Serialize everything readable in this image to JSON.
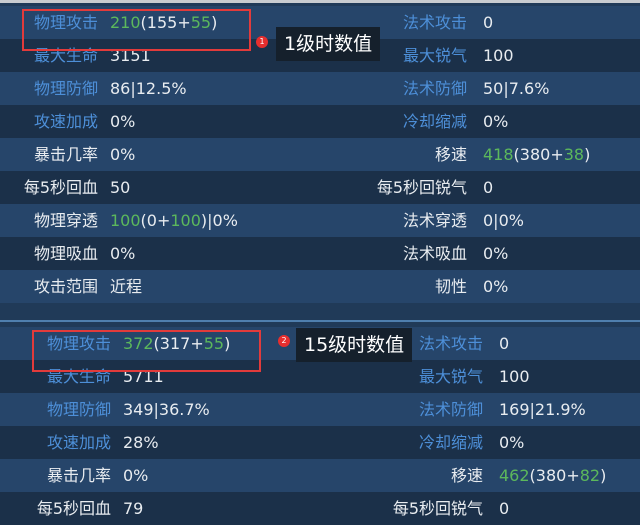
{
  "panel1": {
    "note": "1级时数值",
    "badge": "1",
    "rows": [
      {
        "l": "物理攻击",
        "lv": [
          {
            "t": "210",
            "c": "g"
          },
          {
            "t": "(155+"
          },
          {
            "t": "55",
            "c": "g"
          },
          {
            "t": ")"
          }
        ],
        "r": "法术攻击",
        "rv": [
          {
            "t": "0"
          }
        ],
        "blue": true
      },
      {
        "l": "最大生命",
        "lv": [
          {
            "t": "3151"
          }
        ],
        "r": "最大锐气",
        "rv": [
          {
            "t": "100"
          }
        ],
        "blue": true
      },
      {
        "l": "物理防御",
        "lv": [
          {
            "t": "86|12.5%"
          }
        ],
        "r": "法术防御",
        "rv": [
          {
            "t": "50|7.6%"
          }
        ],
        "blue": true
      },
      {
        "l": "攻速加成",
        "lv": [
          {
            "t": "0%"
          }
        ],
        "r": "冷却缩减",
        "rv": [
          {
            "t": "0%"
          }
        ],
        "blue": true
      },
      {
        "l": "暴击几率",
        "lv": [
          {
            "t": "0%"
          }
        ],
        "r": "移速",
        "rv": [
          {
            "t": "418",
            "c": "g"
          },
          {
            "t": "(380+"
          },
          {
            "t": "38",
            "c": "g"
          },
          {
            "t": ")"
          }
        ]
      },
      {
        "l": "每5秒回血",
        "lv": [
          {
            "t": "50"
          }
        ],
        "r": "每5秒回锐气",
        "rv": [
          {
            "t": "0"
          }
        ]
      },
      {
        "l": "物理穿透",
        "lv": [
          {
            "t": "100",
            "c": "g"
          },
          {
            "t": "(0+"
          },
          {
            "t": "100",
            "c": "g"
          },
          {
            "t": ")|0%"
          }
        ],
        "r": "法术穿透",
        "rv": [
          {
            "t": "0|0%"
          }
        ]
      },
      {
        "l": "物理吸血",
        "lv": [
          {
            "t": "0%"
          }
        ],
        "r": "法术吸血",
        "rv": [
          {
            "t": "0%"
          }
        ]
      },
      {
        "l": "攻击范围",
        "lv": [
          {
            "t": "近程"
          }
        ],
        "r": "韧性",
        "rv": [
          {
            "t": "0%"
          }
        ]
      }
    ]
  },
  "panel2": {
    "note": "15级时数值",
    "badge": "2",
    "rows": [
      {
        "l": "物理攻击",
        "lv": [
          {
            "t": "372",
            "c": "g"
          },
          {
            "t": "(317+"
          },
          {
            "t": "55",
            "c": "g"
          },
          {
            "t": ")"
          }
        ],
        "r": "法术攻击",
        "rv": [
          {
            "t": "0"
          }
        ],
        "blue": true
      },
      {
        "l": "最大生命",
        "lv": [
          {
            "t": "5711"
          }
        ],
        "r": "最大锐气",
        "rv": [
          {
            "t": "100"
          }
        ],
        "blue": true
      },
      {
        "l": "物理防御",
        "lv": [
          {
            "t": "349|36.7%"
          }
        ],
        "r": "法术防御",
        "rv": [
          {
            "t": "169|21.9%"
          }
        ],
        "blue": true
      },
      {
        "l": "攻速加成",
        "lv": [
          {
            "t": "28%"
          }
        ],
        "r": "冷却缩减",
        "rv": [
          {
            "t": "0%"
          }
        ],
        "blue": true
      },
      {
        "l": "暴击几率",
        "lv": [
          {
            "t": "0%"
          }
        ],
        "r": "移速",
        "rv": [
          {
            "t": "462",
            "c": "g"
          },
          {
            "t": "(380+"
          },
          {
            "t": "82",
            "c": "g"
          },
          {
            "t": ")"
          }
        ]
      },
      {
        "l": "每5秒回血",
        "lv": [
          {
            "t": "79"
          }
        ],
        "r": "每5秒回锐气",
        "rv": [
          {
            "t": "0"
          }
        ]
      }
    ]
  },
  "colors": {
    "label_blue": "#4d8fd8",
    "value_green": "#5cb85c",
    "highlight_red": "#e23b3b"
  }
}
